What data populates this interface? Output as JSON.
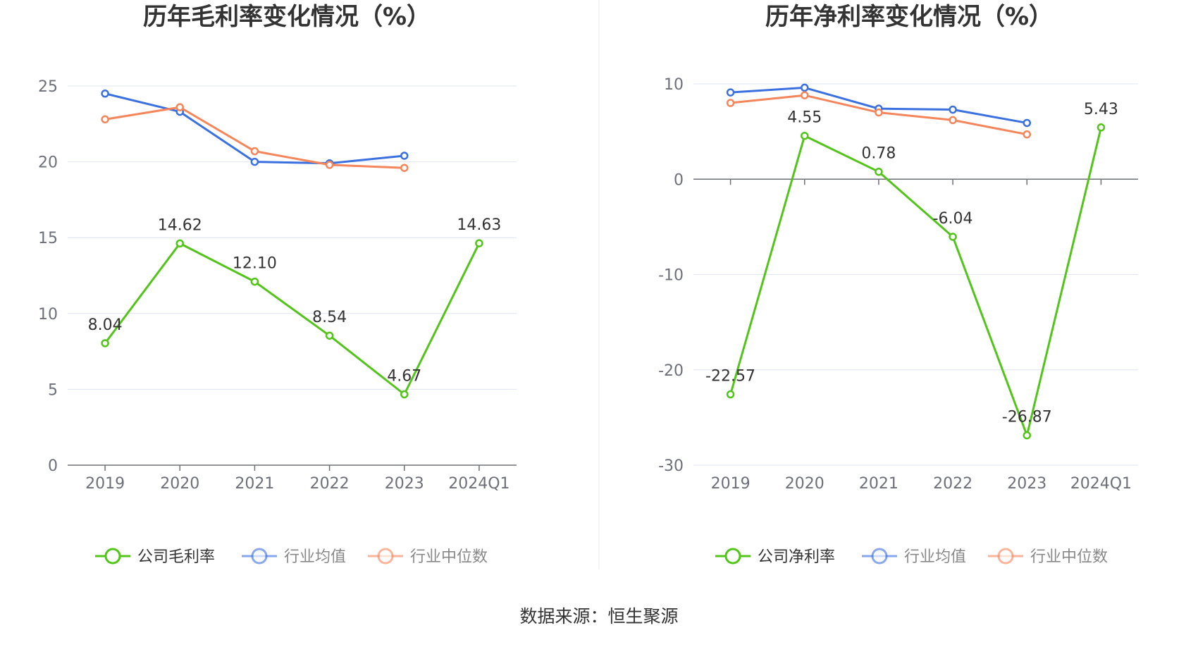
{
  "source_label": "数据来源：恒生聚源",
  "colors": {
    "company": "#52c41a",
    "avg": "#3b70e0",
    "median": "#f5855b",
    "grid": "#dfe4f2",
    "axis": "#6e7079"
  },
  "chart_data": [
    {
      "type": "line",
      "title": "历年毛利率变化情况（%）",
      "categories": [
        "2019",
        "2020",
        "2021",
        "2022",
        "2023",
        "2024Q1"
      ],
      "ylim": [
        0,
        25
      ],
      "yticks": [
        "0",
        "5",
        "10",
        "15",
        "20",
        "25"
      ],
      "ytick_values": [
        0,
        5,
        10,
        15,
        20,
        25
      ],
      "series": [
        {
          "name": "公司毛利率",
          "values": [
            8.04,
            14.62,
            12.1,
            8.54,
            4.67,
            14.63
          ],
          "labels": [
            "8.04",
            "14.62",
            "12.10",
            "8.54",
            "4.67",
            "14.63"
          ]
        },
        {
          "name": "行业均值",
          "values": [
            24.5,
            23.3,
            20.0,
            19.9,
            20.4,
            null
          ]
        },
        {
          "name": "行业中位数",
          "values": [
            22.8,
            23.6,
            20.7,
            19.8,
            19.6,
            null
          ]
        }
      ]
    },
    {
      "type": "line",
      "title": "历年净利率变化情况（%）",
      "categories": [
        "2019",
        "2020",
        "2021",
        "2022",
        "2023",
        "2024Q1"
      ],
      "ylim": [
        -30,
        10
      ],
      "yticks": [
        "-30",
        "-20",
        "-10",
        "0",
        "10"
      ],
      "ytick_values": [
        -30,
        -20,
        -10,
        0,
        10
      ],
      "series": [
        {
          "name": "公司净利率",
          "values": [
            -22.57,
            4.55,
            0.78,
            -6.04,
            -26.87,
            5.43
          ],
          "labels": [
            "-22.57",
            "4.55",
            "0.78",
            "-6.04",
            "-26.87",
            "5.43"
          ]
        },
        {
          "name": "行业均值",
          "values": [
            9.1,
            9.6,
            7.4,
            7.3,
            5.9,
            null
          ]
        },
        {
          "name": "行业中位数",
          "values": [
            8.0,
            8.8,
            7.0,
            6.2,
            4.7,
            null
          ]
        }
      ]
    }
  ]
}
